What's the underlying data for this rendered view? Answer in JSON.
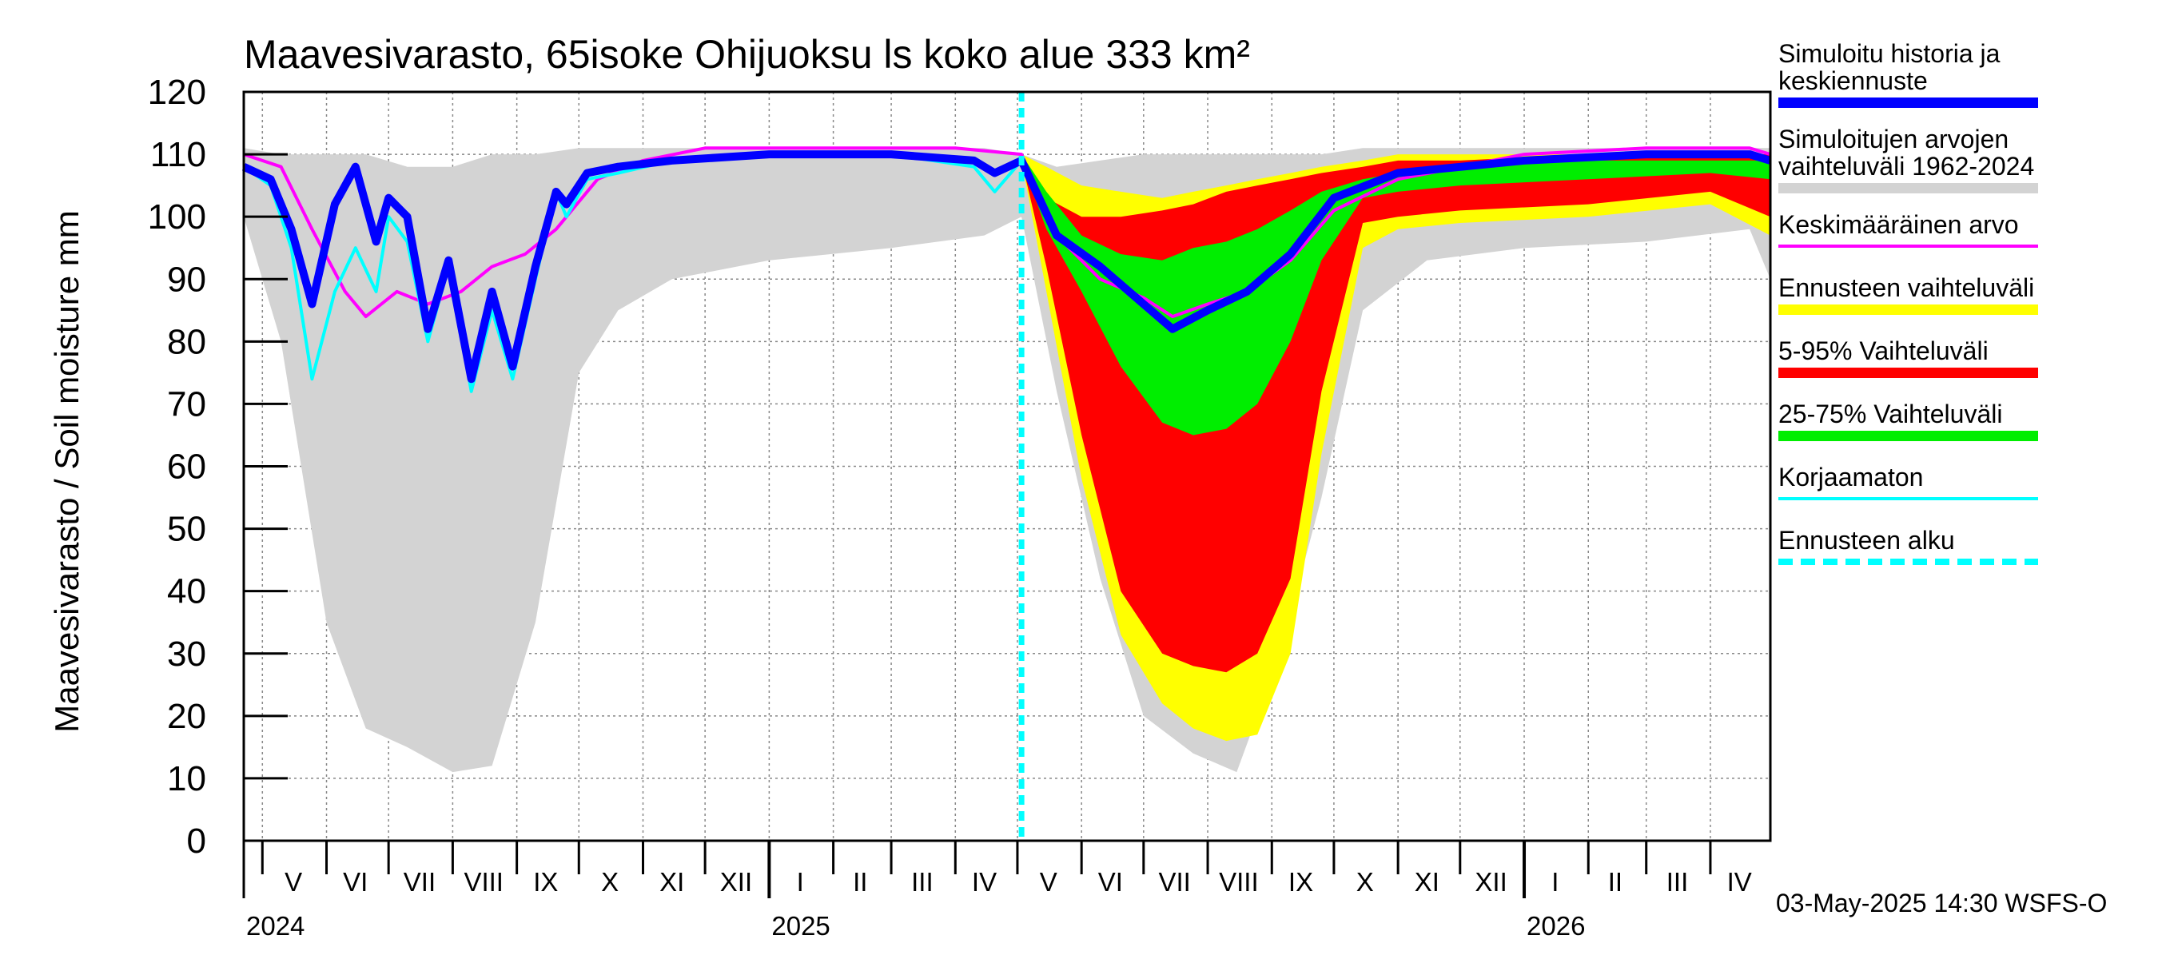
{
  "chart_data": {
    "type": "area",
    "title": "Maavesivarasto, 65isoke Ohijuoksu ls koko alue 333 km²",
    "ylabel": "Maavesivarasto / Soil moisture   mm",
    "ylim": [
      0,
      120
    ],
    "y_ticks": [
      "0",
      "10",
      "20",
      "30",
      "40",
      "50",
      "60",
      "70",
      "80",
      "90",
      "100",
      "110",
      "120"
    ],
    "x_range": [
      "2024-04-22",
      "2026-04-30"
    ],
    "forecast_start": "2025-05-03",
    "month_labels": [
      {
        "label": "V",
        "date": "2024-05-16"
      },
      {
        "label": "VI",
        "date": "2024-06-15"
      },
      {
        "label": "VII",
        "date": "2024-07-16"
      },
      {
        "label": "VIII",
        "date": "2024-08-16"
      },
      {
        "label": "IX",
        "date": "2024-09-15"
      },
      {
        "label": "X",
        "date": "2024-10-16"
      },
      {
        "label": "XI",
        "date": "2024-11-15"
      },
      {
        "label": "XII",
        "date": "2024-12-16"
      },
      {
        "label": "I",
        "date": "2025-01-16"
      },
      {
        "label": "II",
        "date": "2025-02-14"
      },
      {
        "label": "III",
        "date": "2025-03-16"
      },
      {
        "label": "IV",
        "date": "2025-04-15"
      },
      {
        "label": "V",
        "date": "2025-05-16"
      },
      {
        "label": "VI",
        "date": "2025-06-15"
      },
      {
        "label": "VII",
        "date": "2025-07-16"
      },
      {
        "label": "VIII",
        "date": "2025-08-16"
      },
      {
        "label": "IX",
        "date": "2025-09-15"
      },
      {
        "label": "X",
        "date": "2025-10-16"
      },
      {
        "label": "XI",
        "date": "2025-11-15"
      },
      {
        "label": "XII",
        "date": "2025-12-16"
      },
      {
        "label": "I",
        "date": "2026-01-16"
      },
      {
        "label": "II",
        "date": "2026-02-14"
      },
      {
        "label": "III",
        "date": "2026-03-16"
      },
      {
        "label": "IV",
        "date": "2026-04-15"
      }
    ],
    "year_labels": [
      {
        "label": "2024",
        "date": "2024-04-22"
      },
      {
        "label": "2025",
        "date": "2025-01-01"
      },
      {
        "label": "2026",
        "date": "2026-01-01"
      }
    ],
    "grid": true,
    "legend_position": "right",
    "series": [
      {
        "name": "Simuloitujen arvojen vaihteluväli 1962-2024",
        "kind": "band",
        "color": "#d3d3d3",
        "x": [
          "2024-04-22",
          "2024-05-10",
          "2024-06-01",
          "2024-06-20",
          "2024-07-10",
          "2024-08-01",
          "2024-08-20",
          "2024-09-10",
          "2024-10-01",
          "2024-10-20",
          "2024-11-15",
          "2025-01-01",
          "2025-03-01",
          "2025-04-15",
          "2025-05-03",
          "2025-05-20",
          "2025-06-10",
          "2025-07-01",
          "2025-07-25",
          "2025-08-15",
          "2025-09-05",
          "2025-09-25",
          "2025-10-15",
          "2025-11-15",
          "2026-01-01",
          "2026-03-01",
          "2026-04-20",
          "2026-04-30"
        ],
        "low": [
          100,
          80,
          35,
          18,
          15,
          11,
          12,
          35,
          75,
          85,
          90,
          93,
          95,
          97,
          100,
          72,
          42,
          20,
          14,
          11,
          30,
          55,
          85,
          93,
          95,
          96,
          98,
          90
        ],
        "high": [
          111,
          110,
          110,
          110,
          108,
          108,
          110,
          110,
          111,
          111,
          111,
          111,
          111,
          111,
          110,
          108,
          109,
          110,
          110,
          110,
          110,
          110,
          111,
          111,
          111,
          111,
          111,
          111
        ]
      },
      {
        "name": "Ennusteen vaihteluväli",
        "kind": "band",
        "color": "#ffff00",
        "x": [
          "2025-05-03",
          "2025-05-15",
          "2025-06-01",
          "2025-06-20",
          "2025-07-10",
          "2025-07-25",
          "2025-08-10",
          "2025-08-25",
          "2025-09-10",
          "2025-09-25",
          "2025-10-15",
          "2025-11-01",
          "2025-12-01",
          "2026-02-01",
          "2026-04-01",
          "2026-04-30"
        ],
        "low": [
          109,
          88,
          58,
          33,
          22,
          18,
          16,
          17,
          30,
          62,
          95,
          98,
          99,
          100,
          102,
          97
        ],
        "high": [
          110,
          108,
          105,
          104,
          103,
          104,
          105,
          106,
          107,
          108,
          109,
          110,
          110,
          110,
          110,
          110
        ]
      },
      {
        "name": "5-95% Vaihteluväli",
        "kind": "band",
        "color": "#ff0000",
        "x": [
          "2025-05-03",
          "2025-05-15",
          "2025-06-01",
          "2025-06-20",
          "2025-07-10",
          "2025-07-25",
          "2025-08-10",
          "2025-08-25",
          "2025-09-10",
          "2025-09-25",
          "2025-10-15",
          "2025-11-01",
          "2025-12-01",
          "2026-02-01",
          "2026-04-01",
          "2026-04-30"
        ],
        "low": [
          109,
          92,
          65,
          40,
          30,
          28,
          27,
          30,
          42,
          72,
          99,
          100,
          101,
          102,
          104,
          100
        ],
        "high": [
          110,
          103,
          100,
          100,
          101,
          102,
          104,
          105,
          106,
          107,
          108,
          109,
          109,
          110,
          110,
          110
        ]
      },
      {
        "name": "25-75% Vaihteluväli",
        "kind": "band",
        "color": "#00ee00",
        "x": [
          "2025-05-03",
          "2025-05-15",
          "2025-06-01",
          "2025-06-20",
          "2025-07-10",
          "2025-07-25",
          "2025-08-10",
          "2025-08-25",
          "2025-09-10",
          "2025-09-25",
          "2025-10-15",
          "2025-11-01",
          "2025-12-01",
          "2026-02-01",
          "2026-04-01",
          "2026-04-30"
        ],
        "low": [
          109,
          98,
          88,
          76,
          67,
          65,
          66,
          70,
          80,
          93,
          103,
          104,
          105,
          106,
          107,
          106
        ],
        "high": [
          110,
          104,
          97,
          94,
          93,
          95,
          96,
          98,
          101,
          104,
          106,
          107,
          108,
          109,
          109,
          109
        ]
      },
      {
        "name": "Keskimääräinen arvo",
        "kind": "line",
        "color": "#ff00ff",
        "width": 4,
        "x": [
          "2024-04-22",
          "2024-05-10",
          "2024-05-25",
          "2024-06-10",
          "2024-06-20",
          "2024-07-05",
          "2024-07-20",
          "2024-08-05",
          "2024-08-20",
          "2024-09-05",
          "2024-09-20",
          "2024-10-10",
          "2024-11-01",
          "2024-12-01",
          "2025-02-01",
          "2025-04-01",
          "2025-05-03",
          "2025-05-20",
          "2025-06-10",
          "2025-07-01",
          "2025-07-15",
          "2025-08-01",
          "2025-08-20",
          "2025-09-10",
          "2025-10-01",
          "2025-11-01",
          "2026-01-01",
          "2026-03-01",
          "2026-04-20",
          "2026-04-30"
        ],
        "y": [
          110,
          108,
          98,
          88,
          84,
          88,
          86,
          88,
          92,
          94,
          98,
          106,
          109,
          111,
          111,
          111,
          110,
          97,
          90,
          87,
          84,
          86,
          88,
          93,
          101,
          106,
          110,
          111,
          111,
          110
        ]
      },
      {
        "name": "Korjaamaton",
        "kind": "line",
        "color": "#00ffff",
        "width": 4,
        "x": [
          "2024-04-22",
          "2024-05-05",
          "2024-05-15",
          "2024-05-25",
          "2024-06-05",
          "2024-06-15",
          "2024-06-25",
          "2024-07-01",
          "2024-07-10",
          "2024-07-20",
          "2024-07-30",
          "2024-08-10",
          "2024-08-20",
          "2024-08-30",
          "2024-09-10",
          "2024-09-20",
          "2024-09-25",
          "2024-10-05",
          "2024-10-20",
          "2024-11-15",
          "2025-01-01",
          "2025-03-01",
          "2025-04-10",
          "2025-04-20",
          "2025-05-03"
        ],
        "y": [
          108,
          105,
          95,
          74,
          88,
          95,
          88,
          100,
          96,
          80,
          92,
          72,
          85,
          74,
          90,
          104,
          100,
          106,
          107,
          109,
          110,
          110,
          108,
          104,
          109
        ]
      },
      {
        "name": "Simuloitu historia ja keskiennuste",
        "kind": "line",
        "color": "#0000ff",
        "width": 10,
        "x": [
          "2024-04-22",
          "2024-05-05",
          "2024-05-15",
          "2024-05-25",
          "2024-06-05",
          "2024-06-15",
          "2024-06-25",
          "2024-07-01",
          "2024-07-10",
          "2024-07-20",
          "2024-07-30",
          "2024-08-10",
          "2024-08-20",
          "2024-08-30",
          "2024-09-10",
          "2024-09-20",
          "2024-09-25",
          "2024-10-05",
          "2024-10-20",
          "2024-11-15",
          "2025-01-01",
          "2025-03-01",
          "2025-04-10",
          "2025-04-20",
          "2025-05-03",
          "2025-05-20",
          "2025-06-10",
          "2025-07-01",
          "2025-07-15",
          "2025-08-01",
          "2025-08-20",
          "2025-09-10",
          "2025-10-01",
          "2025-11-01",
          "2026-01-01",
          "2026-03-01",
          "2026-04-20",
          "2026-04-30"
        ],
        "y": [
          108,
          106,
          98,
          86,
          102,
          108,
          96,
          103,
          100,
          82,
          93,
          74,
          88,
          76,
          92,
          104,
          102,
          107,
          108,
          109,
          110,
          110,
          109,
          107,
          109,
          97,
          92,
          86,
          82,
          85,
          88,
          94,
          103,
          107,
          109,
          110,
          110,
          109
        ]
      }
    ]
  },
  "legend": [
    {
      "label": "Simuloitu historia ja\nkeskiennuste",
      "color": "#0000ff",
      "style": "thick"
    },
    {
      "label": "Simuloitujen arvojen\nvaihteluväli 1962-2024",
      "color": "#d3d3d3",
      "style": "thick"
    },
    {
      "label": "Keskimääräinen arvo",
      "color": "#ff00ff",
      "style": "thin"
    },
    {
      "label": "Ennusteen vaihteluväli",
      "color": "#ffff00",
      "style": "thick"
    },
    {
      "label": "5-95% Vaihteluväli",
      "color": "#ff0000",
      "style": "thick"
    },
    {
      "label": "25-75% Vaihteluväli",
      "color": "#00ee00",
      "style": "thick"
    },
    {
      "label": "Korjaamaton",
      "color": "#00ffff",
      "style": "thin"
    },
    {
      "label": "Ennusteen alku",
      "color": "#00ffff",
      "style": "dashed"
    }
  ],
  "footer": "03-May-2025 14:30 WSFS-O"
}
